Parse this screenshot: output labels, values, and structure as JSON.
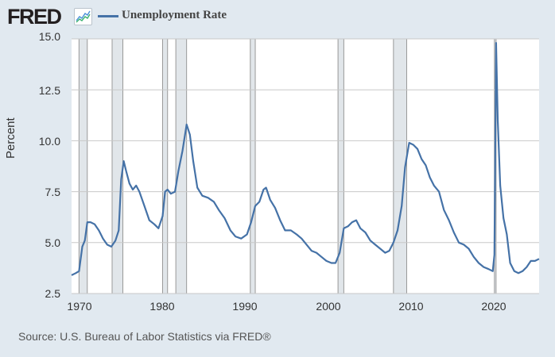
{
  "header": {
    "logo": "FRED",
    "logo_icon": "chart-line-icon",
    "legend_label": "Unemployment Rate",
    "series_color": "#4572a7"
  },
  "footer": {
    "source": "Source: U.S. Bureau of Labor Statistics via FRED®"
  },
  "chart_data": {
    "type": "line",
    "title": "Unemployment Rate",
    "xlabel": "",
    "ylabel": "Percent",
    "ylim": [
      2.5,
      15.0
    ],
    "xlim": [
      1969.0,
      2025.5
    ],
    "yticks": [
      "2.5",
      "5.0",
      "7.5",
      "10.0",
      "12.5",
      "15.0"
    ],
    "xticks": [
      "1970",
      "1980",
      "1990",
      "2000",
      "2010",
      "2020"
    ],
    "grid": true,
    "legend_position": "top-left",
    "recessions": [
      [
        1969.9,
        1970.9
      ],
      [
        1973.9,
        1975.2
      ],
      [
        1980.0,
        1980.6
      ],
      [
        1981.6,
        1982.9
      ],
      [
        1990.6,
        1991.2
      ],
      [
        2001.2,
        2001.9
      ],
      [
        2007.9,
        2009.5
      ],
      [
        2020.1,
        2020.3
      ]
    ],
    "series": [
      {
        "name": "Unemployment Rate",
        "x": [
          1969.0,
          1969.5,
          1969.9,
          1970.3,
          1970.6,
          1970.9,
          1971.3,
          1971.8,
          1972.3,
          1972.8,
          1973.3,
          1973.8,
          1974.3,
          1974.7,
          1975.0,
          1975.3,
          1975.6,
          1976.0,
          1976.4,
          1976.8,
          1977.2,
          1977.8,
          1978.4,
          1979.0,
          1979.5,
          1980.0,
          1980.3,
          1980.6,
          1981.0,
          1981.5,
          1981.9,
          1982.4,
          1982.9,
          1983.3,
          1983.7,
          1984.2,
          1984.8,
          1985.5,
          1986.2,
          1986.8,
          1987.5,
          1988.2,
          1988.8,
          1989.5,
          1990.2,
          1990.7,
          1991.2,
          1991.7,
          1992.2,
          1992.5,
          1993.0,
          1993.6,
          1994.2,
          1994.8,
          1995.5,
          1996.2,
          1996.8,
          1997.4,
          1998.0,
          1998.6,
          1999.2,
          1999.8,
          2000.4,
          2000.9,
          2001.4,
          2001.9,
          2002.4,
          2002.9,
          2003.4,
          2003.9,
          2004.5,
          2005.1,
          2005.7,
          2006.3,
          2006.9,
          2007.4,
          2007.9,
          2008.4,
          2008.9,
          2009.3,
          2009.8,
          2010.3,
          2010.8,
          2011.3,
          2011.8,
          2012.3,
          2012.8,
          2013.4,
          2014.0,
          2014.6,
          2015.2,
          2015.8,
          2016.4,
          2017.0,
          2017.6,
          2018.2,
          2018.8,
          2019.4,
          2019.9,
          2020.1,
          2020.3,
          2020.5,
          2020.8,
          2021.2,
          2021.6,
          2022.0,
          2022.5,
          2023.0,
          2023.5,
          2024.0,
          2024.5,
          2025.0,
          2025.5
        ],
        "values": [
          3.4,
          3.5,
          3.6,
          4.8,
          5.1,
          6.0,
          6.0,
          5.9,
          5.6,
          5.2,
          4.9,
          4.8,
          5.1,
          5.6,
          8.1,
          9.0,
          8.5,
          7.9,
          7.6,
          7.8,
          7.5,
          6.8,
          6.1,
          5.9,
          5.7,
          6.3,
          7.5,
          7.6,
          7.4,
          7.5,
          8.5,
          9.5,
          10.8,
          10.3,
          9.0,
          7.7,
          7.3,
          7.2,
          7.0,
          6.6,
          6.2,
          5.6,
          5.3,
          5.2,
          5.4,
          6.0,
          6.8,
          7.0,
          7.6,
          7.7,
          7.1,
          6.7,
          6.1,
          5.6,
          5.6,
          5.4,
          5.2,
          4.9,
          4.6,
          4.5,
          4.3,
          4.1,
          4.0,
          4.0,
          4.5,
          5.7,
          5.8,
          6.0,
          6.1,
          5.7,
          5.5,
          5.1,
          4.9,
          4.7,
          4.5,
          4.6,
          5.0,
          5.6,
          6.8,
          8.7,
          9.9,
          9.8,
          9.6,
          9.1,
          8.8,
          8.2,
          7.8,
          7.5,
          6.6,
          6.1,
          5.5,
          5.0,
          4.9,
          4.7,
          4.3,
          4.0,
          3.8,
          3.7,
          3.6,
          4.4,
          14.8,
          11.0,
          7.8,
          6.2,
          5.4,
          4.0,
          3.6,
          3.5,
          3.6,
          3.8,
          4.1,
          4.1,
          4.2
        ]
      }
    ]
  }
}
